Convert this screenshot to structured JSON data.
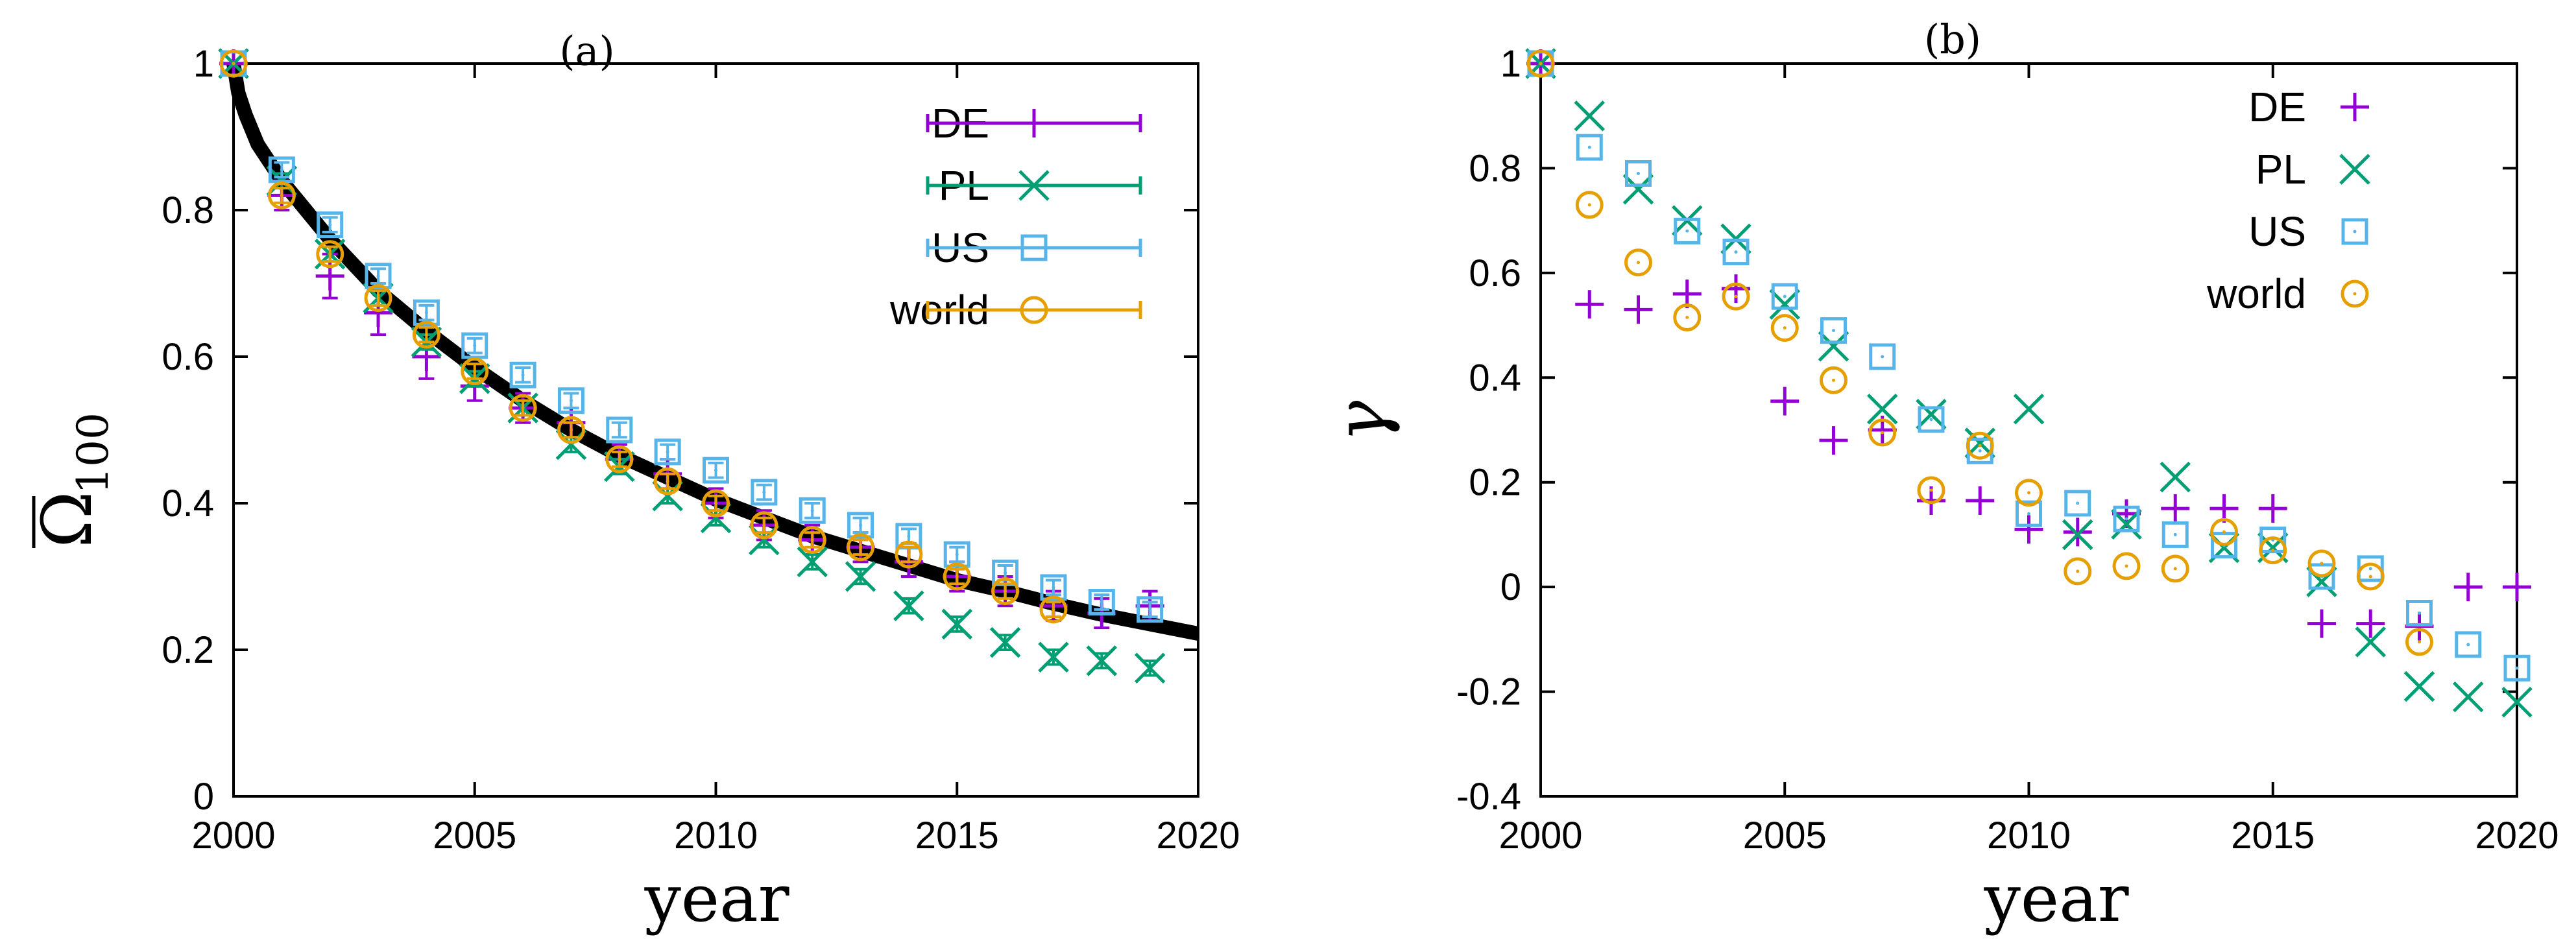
{
  "colors": {
    "DE": "#9400d3",
    "PL": "#009e73",
    "US": "#56b4e9",
    "world": "#e69f00",
    "fit": "#000000"
  },
  "chart_data": [
    {
      "id": "a",
      "type": "scatter",
      "title": "(a)",
      "xlabel": "year",
      "ylabel": "Ω",
      "ylabel_sub": "100",
      "xlim": [
        2000,
        2020
      ],
      "ylim": [
        0,
        1
      ],
      "xticks": [
        "2000",
        "2005",
        "2010",
        "2015",
        "2020"
      ],
      "yticks": [
        "0",
        "0.2",
        "0.4",
        "0.6",
        "0.8",
        "1"
      ],
      "legend": [
        "DE",
        "PL",
        "US",
        "world"
      ],
      "legend_position": "top-right",
      "error_bars": true,
      "x": [
        2000,
        2001,
        2002,
        2003,
        2004,
        2005,
        2006,
        2007,
        2008,
        2009,
        2010,
        2011,
        2012,
        2013,
        2014,
        2015,
        2016,
        2017,
        2018,
        2019
      ],
      "series": [
        {
          "name": "DE",
          "marker": "plus",
          "values": [
            1.0,
            0.82,
            0.71,
            0.66,
            0.6,
            0.56,
            0.53,
            0.51,
            0.46,
            0.44,
            0.4,
            0.37,
            0.35,
            0.34,
            0.32,
            0.3,
            0.28,
            0.26,
            0.25,
            0.26
          ],
          "errors": [
            0,
            0.02,
            0.03,
            0.03,
            0.03,
            0.02,
            0.02,
            0.02,
            0.02,
            0.02,
            0.02,
            0.02,
            0.02,
            0.02,
            0.02,
            0.02,
            0.02,
            0.02,
            0.02,
            0.02
          ]
        },
        {
          "name": "PL",
          "marker": "cross",
          "values": [
            1.0,
            0.84,
            0.74,
            0.68,
            0.62,
            0.57,
            0.53,
            0.48,
            0.45,
            0.41,
            0.38,
            0.35,
            0.32,
            0.3,
            0.26,
            0.235,
            0.21,
            0.19,
            0.185,
            0.175
          ],
          "errors": [
            0,
            0.01,
            0.01,
            0.01,
            0.01,
            0.01,
            0.01,
            0.01,
            0.01,
            0.01,
            0.01,
            0.01,
            0.01,
            0.01,
            0.01,
            0.01,
            0.01,
            0.01,
            0.01,
            0.01
          ]
        },
        {
          "name": "US",
          "marker": "square",
          "values": [
            1.0,
            0.855,
            0.78,
            0.71,
            0.66,
            0.615,
            0.575,
            0.54,
            0.5,
            0.47,
            0.445,
            0.415,
            0.39,
            0.37,
            0.355,
            0.33,
            0.305,
            0.285,
            0.265,
            0.255
          ],
          "errors": [
            0,
            0.01,
            0.01,
            0.01,
            0.01,
            0.01,
            0.01,
            0.01,
            0.01,
            0.01,
            0.01,
            0.01,
            0.01,
            0.01,
            0.01,
            0.01,
            0.01,
            0.01,
            0.01,
            0.01
          ]
        },
        {
          "name": "world",
          "marker": "circle",
          "values": [
            1.0,
            0.82,
            0.74,
            0.68,
            0.63,
            0.58,
            0.53,
            0.5,
            0.46,
            0.43,
            0.4,
            0.37,
            0.35,
            0.34,
            0.33,
            0.3,
            0.28,
            0.255,
            null,
            null
          ],
          "errors": [
            0,
            0.01,
            0.01,
            0.01,
            0.01,
            0.01,
            0.01,
            0.01,
            0.01,
            0.01,
            0.01,
            0.01,
            0.01,
            0.01,
            0.01,
            0.01,
            0.01,
            0.01,
            0,
            0
          ]
        }
      ],
      "fit_curve": {
        "name": "fit",
        "x": [
          2000,
          2000.1,
          2000.25,
          2000.5,
          2000.75,
          2001,
          2001.5,
          2002,
          2002.5,
          2003,
          2004,
          2005,
          2006,
          2007,
          2008,
          2009,
          2010,
          2011,
          2012,
          2013,
          2014,
          2015,
          2016,
          2017,
          2018,
          2019,
          2020
        ],
        "y": [
          1.0,
          0.96,
          0.93,
          0.89,
          0.865,
          0.84,
          0.8,
          0.76,
          0.725,
          0.69,
          0.635,
          0.585,
          0.54,
          0.5,
          0.465,
          0.435,
          0.405,
          0.38,
          0.355,
          0.335,
          0.315,
          0.295,
          0.28,
          0.263,
          0.248,
          0.235,
          0.222
        ]
      }
    },
    {
      "id": "b",
      "type": "scatter",
      "title": "(b)",
      "xlabel": "year",
      "ylabel": "γ",
      "xlim": [
        2000,
        2020
      ],
      "ylim": [
        -0.4,
        1
      ],
      "xticks": [
        "2000",
        "2005",
        "2010",
        "2015",
        "2020"
      ],
      "yticks": [
        "-0.4",
        "-0.2",
        "0",
        "0.2",
        "0.4",
        "0.6",
        "0.8",
        "1"
      ],
      "legend": [
        "DE",
        "PL",
        "US",
        "world"
      ],
      "legend_position": "top-right",
      "x": [
        2000,
        2001,
        2002,
        2003,
        2004,
        2005,
        2006,
        2007,
        2008,
        2009,
        2010,
        2011,
        2012,
        2013,
        2014,
        2015,
        2016,
        2017,
        2018,
        2019,
        2020
      ],
      "series": [
        {
          "name": "DE",
          "marker": "plus",
          "values": [
            1.0,
            0.54,
            0.53,
            0.56,
            0.57,
            0.355,
            0.28,
            0.3,
            0.165,
            0.165,
            0.11,
            0.105,
            0.14,
            0.15,
            0.15,
            0.15,
            -0.07,
            -0.07,
            -0.075,
            0.0,
            0.0
          ]
        },
        {
          "name": "PL",
          "marker": "cross",
          "values": [
            1.0,
            0.9,
            0.76,
            0.7,
            0.665,
            0.54,
            0.46,
            0.34,
            0.33,
            0.275,
            0.34,
            0.1,
            0.12,
            0.21,
            0.075,
            0.075,
            0.01,
            -0.105,
            -0.19,
            -0.21,
            -0.22
          ]
        },
        {
          "name": "US",
          "marker": "square",
          "values": [
            1.0,
            0.84,
            0.79,
            0.68,
            0.64,
            0.555,
            0.49,
            0.44,
            0.32,
            0.26,
            0.14,
            0.16,
            0.13,
            0.1,
            0.08,
            0.09,
            0.02,
            0.035,
            -0.05,
            -0.11,
            -0.155
          ]
        },
        {
          "name": "world",
          "marker": "circle",
          "values": [
            1.0,
            0.73,
            0.62,
            0.515,
            0.555,
            0.495,
            0.395,
            0.295,
            0.185,
            0.27,
            0.18,
            0.03,
            0.04,
            0.035,
            0.105,
            0.07,
            0.045,
            0.02,
            -0.105,
            null,
            null
          ]
        }
      ]
    }
  ]
}
